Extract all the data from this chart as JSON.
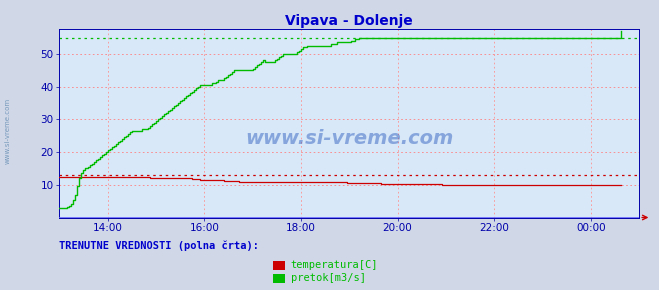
{
  "title": "Vipava - Dolenje",
  "bg_color": "#d0d8e8",
  "plot_bg_color": "#d8e8f8",
  "grid_color_h": "#ff8080",
  "grid_color_v": "#ff9090",
  "xlim": [
    0,
    288
  ],
  "ylim": [
    0,
    57.6
  ],
  "yticks": [
    10,
    20,
    30,
    40,
    50
  ],
  "xtick_positions": [
    24,
    72,
    120,
    168,
    216,
    264
  ],
  "xtick_labels": [
    "14:00",
    "16:00",
    "18:00",
    "20:00",
    "22:00",
    "00:00"
  ],
  "title_color": "#0000cc",
  "axis_color": "#0000aa",
  "tick_color": "#0000aa",
  "temp_color": "#cc0000",
  "flow_color": "#00bb00",
  "temp_dotted_y": 13.0,
  "flow_dotted_y": 55.0,
  "baseline_color": "#6666ff",
  "watermark": "www.si-vreme.com",
  "watermark_color": "#2255bb",
  "legend_text": "TRENUTNE VREDNOSTI (polna črta):",
  "legend_color": "#0000cc",
  "legend_temp": "temperatura[C]",
  "legend_flow": "pretok[m3/s]",
  "sidewater_color": "#7799bb",
  "temp_data": [
    12.5,
    12.5,
    12.5,
    12.5,
    12.5,
    12.5,
    12.5,
    12.5,
    12.5,
    12.5,
    12.5,
    12.5,
    12.5,
    12.5,
    12.5,
    12.5,
    12.5,
    12.5,
    12.5,
    12.5,
    12.5,
    12.5,
    12.5,
    12.5,
    12.5,
    12.5,
    12.5,
    12.5,
    12.5,
    12.5,
    12.5,
    12.5,
    12.5,
    12.5,
    12.5,
    12.5,
    12.5,
    12.5,
    12.5,
    12.5,
    12.5,
    12.5,
    12.5,
    12.5,
    12.5,
    12.0,
    12.0,
    12.0,
    12.0,
    12.0,
    12.0,
    12.0,
    12.0,
    12.0,
    12.0,
    12.0,
    12.0,
    12.0,
    12.0,
    12.0,
    12.0,
    12.0,
    12.0,
    12.0,
    12.0,
    12.0,
    11.8,
    11.8,
    11.8,
    11.8,
    11.5,
    11.5,
    11.5,
    11.5,
    11.5,
    11.5,
    11.5,
    11.5,
    11.5,
    11.5,
    11.5,
    11.5,
    11.3,
    11.3,
    11.3,
    11.3,
    11.3,
    11.3,
    11.3,
    11.0,
    11.0,
    11.0,
    11.0,
    11.0,
    11.0,
    11.0,
    11.0,
    11.0,
    11.0,
    11.0,
    11.0,
    11.0,
    11.0,
    11.0,
    11.0,
    11.0,
    11.0,
    11.0,
    11.0,
    11.0,
    11.0,
    11.0,
    10.8,
    10.8,
    10.8,
    10.8,
    10.8,
    10.8,
    10.8,
    10.8,
    10.8,
    10.8,
    10.8,
    10.8,
    10.8,
    10.8,
    10.8,
    10.8,
    10.8,
    10.8,
    10.8,
    10.8,
    10.8,
    10.8,
    10.8,
    10.8,
    10.8,
    10.8,
    10.8,
    10.8,
    10.8,
    10.8,
    10.8,
    10.5,
    10.5,
    10.5,
    10.5,
    10.5,
    10.5,
    10.5,
    10.5,
    10.5,
    10.5,
    10.5,
    10.5,
    10.5,
    10.5,
    10.5,
    10.5,
    10.5,
    10.3,
    10.3,
    10.3,
    10.3,
    10.3,
    10.3,
    10.3,
    10.3,
    10.3,
    10.3,
    10.3,
    10.3,
    10.3,
    10.3,
    10.3,
    10.3,
    10.3,
    10.3,
    10.3,
    10.3,
    10.3,
    10.3,
    10.3,
    10.3,
    10.3,
    10.3,
    10.3,
    10.3,
    10.3,
    10.3,
    10.0,
    10.0,
    10.0,
    10.0,
    10.0,
    10.0,
    10.0,
    10.0,
    10.0,
    10.0,
    10.0,
    10.0,
    10.0,
    10.0,
    10.0,
    10.0,
    10.0,
    10.0,
    10.0,
    10.0,
    10.0,
    10.0,
    10.0,
    10.0,
    10.0,
    10.0,
    10.0,
    10.0,
    10.0,
    10.0,
    10.0,
    10.0,
    10.0,
    10.0,
    10.0,
    10.0,
    10.0,
    10.0,
    10.0,
    10.0,
    10.0,
    10.0,
    10.0,
    10.0,
    10.0,
    10.0,
    10.0,
    10.0,
    10.0,
    10.0,
    10.0,
    10.0,
    10.0,
    10.0,
    10.0,
    10.0,
    10.0,
    10.0,
    10.0,
    10.0,
    10.0,
    10.0,
    10.0,
    10.0,
    10.0,
    10.0,
    10.0,
    10.0,
    10.0,
    10.0,
    10.0,
    10.0,
    10.0,
    10.0,
    10.0,
    10.0,
    10.0,
    10.0,
    10.0,
    10.0,
    10.0,
    10.0,
    10.0,
    10.0,
    10.0,
    10.0,
    10.0,
    10.0,
    10.0,
    10.0
  ],
  "flow_data": [
    3.0,
    3.0,
    3.0,
    3.0,
    3.2,
    3.5,
    4.0,
    5.5,
    7.0,
    9.5,
    12.0,
    13.5,
    14.5,
    15.0,
    15.5,
    16.0,
    16.5,
    17.0,
    17.5,
    18.0,
    18.5,
    19.0,
    19.5,
    20.0,
    20.5,
    21.0,
    21.5,
    22.0,
    22.5,
    23.0,
    23.5,
    24.0,
    24.5,
    25.0,
    25.5,
    26.0,
    26.5,
    26.5,
    26.5,
    26.5,
    26.5,
    27.0,
    27.0,
    27.0,
    27.5,
    28.0,
    28.5,
    29.0,
    29.5,
    30.0,
    30.5,
    31.0,
    31.5,
    32.0,
    32.5,
    33.0,
    33.5,
    34.0,
    34.5,
    35.0,
    35.5,
    36.0,
    36.5,
    37.0,
    37.5,
    38.0,
    38.5,
    39.0,
    39.5,
    40.0,
    40.5,
    40.5,
    40.5,
    40.5,
    40.5,
    40.5,
    41.0,
    41.0,
    41.5,
    42.0,
    42.0,
    42.0,
    42.5,
    43.0,
    43.5,
    44.0,
    44.5,
    45.0,
    45.0,
    45.0,
    45.0,
    45.0,
    45.0,
    45.0,
    45.0,
    45.0,
    45.5,
    46.0,
    46.5,
    47.0,
    47.5,
    48.0,
    47.5,
    47.5,
    47.5,
    47.5,
    47.5,
    48.0,
    48.5,
    49.0,
    49.5,
    50.0,
    50.0,
    50.0,
    50.0,
    50.0,
    50.0,
    50.0,
    50.5,
    51.0,
    51.5,
    52.0,
    52.0,
    52.5,
    52.5,
    52.5,
    52.5,
    52.5,
    52.5,
    52.5,
    52.5,
    52.5,
    52.5,
    52.5,
    52.5,
    53.0,
    53.0,
    53.0,
    53.5,
    53.5,
    53.5,
    53.5,
    53.5,
    53.5,
    53.5,
    54.0,
    54.0,
    54.5,
    54.5,
    55.0,
    55.0,
    55.0,
    55.0,
    55.0,
    55.0,
    55.0,
    55.0,
    55.0,
    55.0,
    55.0,
    55.0,
    55.0,
    55.0,
    55.0,
    55.0,
    55.0,
    55.0,
    55.0,
    55.0,
    55.0,
    55.0,
    55.0,
    55.0,
    55.0,
    55.0,
    55.0,
    55.0,
    55.0,
    55.0,
    55.0,
    55.0,
    55.0,
    55.0,
    55.0,
    55.0,
    55.0,
    55.0,
    55.0,
    55.0,
    55.0,
    55.0,
    55.0,
    55.0,
    55.0,
    55.0,
    55.0,
    55.0,
    55.0,
    55.0,
    55.0,
    55.0,
    55.0,
    55.0,
    55.0,
    55.0,
    55.0,
    55.0,
    55.0,
    55.0,
    55.0,
    55.0,
    55.0,
    55.0,
    55.0,
    55.0,
    55.0,
    55.0,
    55.0,
    55.0,
    55.0,
    55.0,
    55.0,
    55.0,
    55.0,
    55.0,
    55.0,
    55.0,
    55.0,
    55.0,
    55.0,
    55.0,
    55.0,
    55.0,
    55.0,
    55.0,
    55.0,
    55.0,
    55.0,
    55.0,
    55.0,
    55.0,
    55.0,
    55.0,
    55.0,
    55.0,
    55.0,
    55.0,
    55.0,
    55.0,
    55.0,
    55.0,
    55.0,
    55.0,
    55.0,
    55.0,
    55.0,
    55.0,
    55.0,
    55.0,
    55.0,
    55.0,
    55.0,
    55.0,
    55.0,
    55.0,
    55.0,
    55.0,
    55.0,
    55.0,
    55.0,
    55.0,
    55.0,
    55.0,
    55.0,
    55.0,
    55.0,
    55.0,
    55.0,
    55.0,
    57.0
  ]
}
